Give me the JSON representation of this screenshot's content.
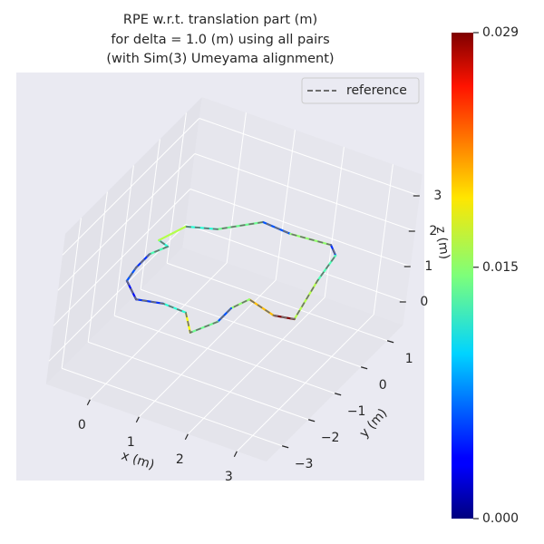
{
  "chart_data": {
    "type": "line3d",
    "title": [
      "RPE w.r.t. translation part (m)",
      "for delta = 1.0 (m) using all pairs",
      "(with Sim(3) Umeyama alignment)"
    ],
    "x_label": "x (m)",
    "y_label": "y (m)",
    "z_label": "z (m)",
    "xlim": [
      -0.9,
      3.6
    ],
    "ylim": [
      -3.6,
      1.6
    ],
    "zlim": [
      -0.65,
      3.6
    ],
    "xticks": [
      0,
      1,
      2,
      3
    ],
    "yticks": [
      {
        "value": -3,
        "label": "−3"
      },
      {
        "value": -2,
        "label": "−2"
      },
      {
        "value": -1,
        "label": "−1"
      },
      0,
      1
    ],
    "zticks": [
      0,
      1,
      2,
      3
    ],
    "grid": true,
    "legend_loc": "upper right",
    "series": [
      {
        "name": "reference",
        "color": "#6e6e6e",
        "linestyle": "dashed",
        "x": [
          -0.4,
          0.12,
          0.7,
          1.29,
          2.07,
          2.3,
          2.41,
          2.64,
          2.27,
          1.66,
          1.52,
          1.52,
          1.27,
          0.9,
          0.42,
          -0.05,
          -0.47,
          -0.53,
          -0.53,
          -0.37,
          -0.6
        ],
        "y": [
          0.5,
          0.74,
          1.39,
          1.33,
          1.42,
          1.17,
          0.27,
          -1.03,
          -1.13,
          -0.92,
          -1.35,
          -1.86,
          -2.44,
          -1.92,
          -1.89,
          -2.04,
          -1.61,
          -1.15,
          -0.63,
          -0.24,
          -0.15
        ],
        "z": [
          1,
          1,
          1,
          1,
          1,
          1,
          1,
          1,
          1,
          1,
          1,
          1,
          1,
          1,
          1,
          1,
          1,
          1,
          1,
          1,
          1
        ]
      }
    ],
    "trajectory": {
      "colormap": "jet",
      "values": [
        0.012,
        0.014,
        0.006,
        0.015,
        0.005,
        0.013,
        0.016,
        0.029,
        0.02,
        0.015,
        0.006,
        0.014,
        0.018,
        0.012,
        0.005,
        0.004,
        0.006,
        0.005,
        0.013,
        0.012,
        0.016
      ]
    },
    "colorbar": {
      "clim": [
        0,
        0.029
      ],
      "ticks": [
        {
          "value": 0,
          "label": "0.000"
        },
        {
          "value": 0.015,
          "label": "0.015"
        },
        {
          "value": 0.029,
          "label": "0.029"
        }
      ]
    }
  }
}
